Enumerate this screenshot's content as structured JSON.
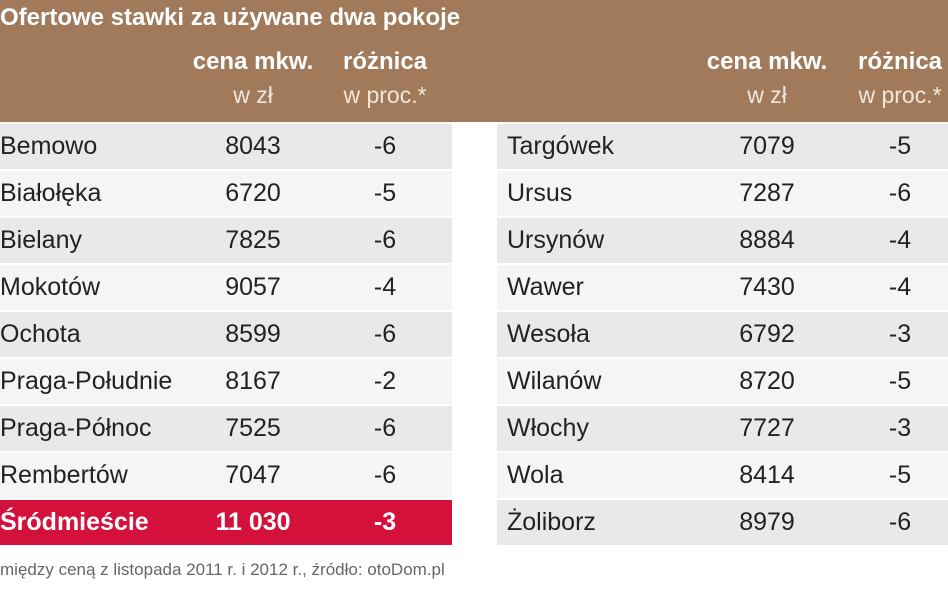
{
  "header": {
    "title": "Ofertowe stawki za używane dwa pokoje",
    "columns": [
      {
        "line1": "cena mkw.",
        "line2": "w zł"
      },
      {
        "line1": "różnica",
        "line2": "w proc.*"
      }
    ]
  },
  "tables": [
    {
      "rows": [
        [
          "Bemowo",
          "8043",
          "-6"
        ],
        [
          "Białołęka",
          "6720",
          "-5"
        ],
        [
          "Bielany",
          "7825",
          "-6"
        ],
        [
          "Mokotów",
          "9057",
          "-4"
        ],
        [
          "Ochota",
          "8599",
          "-6"
        ],
        [
          "Praga-Południe",
          "8167",
          "-2"
        ],
        [
          "Praga-Północ",
          "7525",
          "-6"
        ],
        [
          "Rembertów",
          "7047",
          "-6"
        ],
        [
          "Śródmieście",
          "11 030",
          "-3"
        ]
      ],
      "highlighted_row": 8
    },
    {
      "rows": [
        [
          "Targówek",
          "7079",
          "-5"
        ],
        [
          "Ursus",
          "7287",
          "-6"
        ],
        [
          "Ursynów",
          "8884",
          "-4"
        ],
        [
          "Wawer",
          "7430",
          "-4"
        ],
        [
          "Wesoła",
          "6792",
          "-3"
        ],
        [
          "Wilanów",
          "8720",
          "-5"
        ],
        [
          "Włochy",
          "7727",
          "-3"
        ],
        [
          "Wola",
          "8414",
          "-5"
        ],
        [
          "Żoliborz",
          "8979",
          "-6"
        ]
      ]
    }
  ],
  "footnote": "między ceną z listopada 2011 r. i 2012 r., źródło: otoDom.pl"
}
